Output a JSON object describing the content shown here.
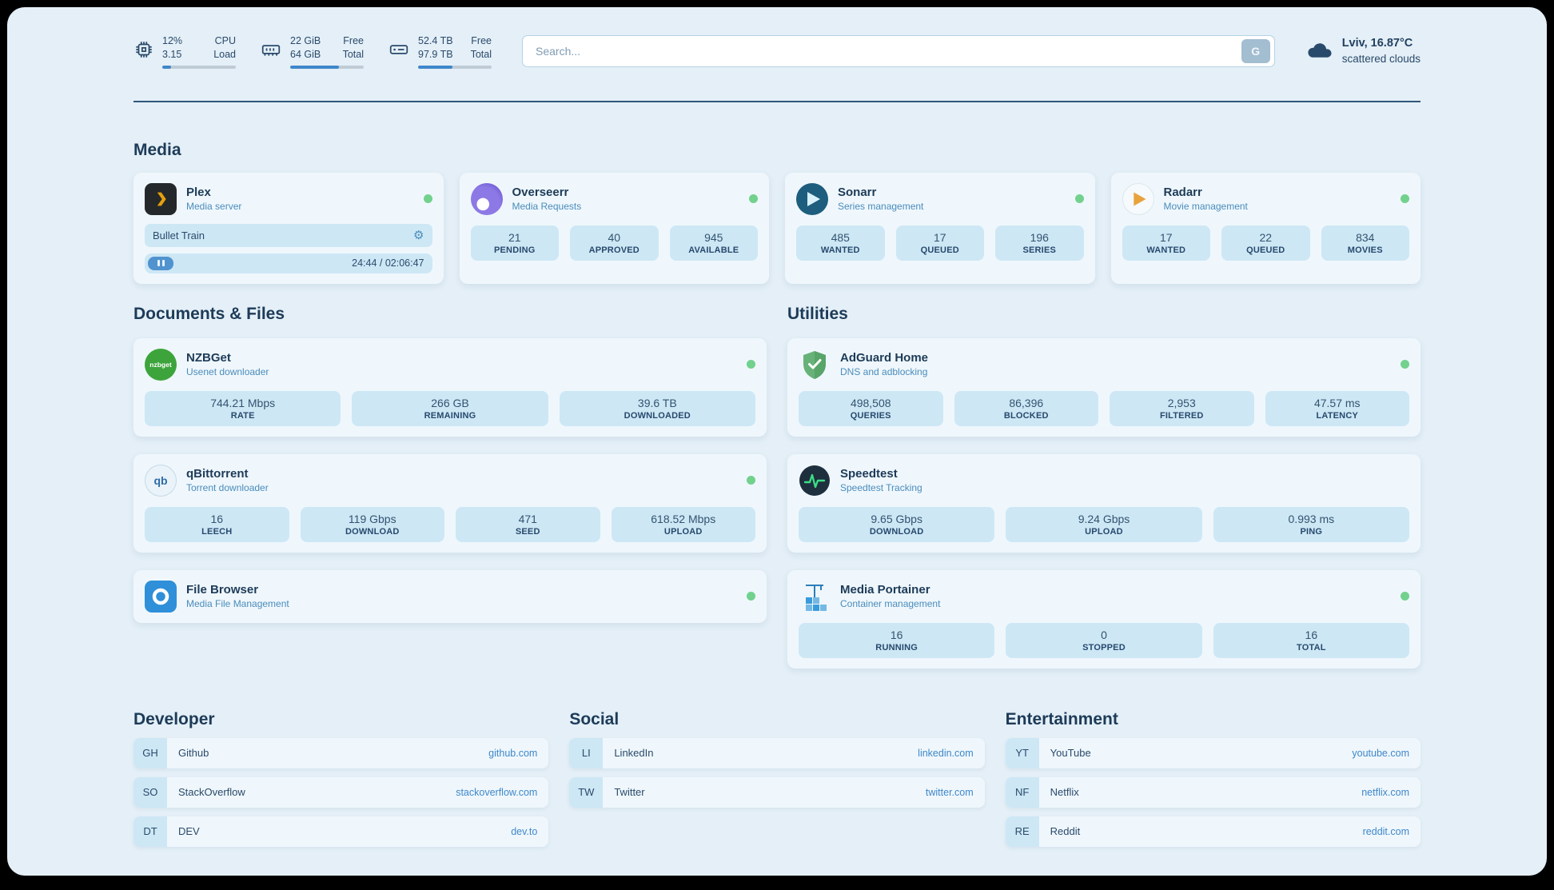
{
  "colors": {
    "accent": "#3f87ca",
    "status_online": "#72d18d",
    "stat_box": "#cde7f5"
  },
  "topbar": {
    "cpu": {
      "value": "12%",
      "load": "3.15",
      "label1": "CPU",
      "label2": "Load",
      "progress": 12
    },
    "ram": {
      "free": "22 GiB",
      "total": "64 GiB",
      "label1": "Free",
      "label2": "Total",
      "progress": 66
    },
    "disk": {
      "free": "52.4 TB",
      "total": "97.9 TB",
      "label1": "Free",
      "label2": "Total",
      "progress": 47
    },
    "search": {
      "placeholder": "Search...",
      "button": "G"
    },
    "weather": {
      "location": "Lviv, 16.87°C",
      "condition": "scattered clouds"
    }
  },
  "sections": {
    "media": "Media",
    "documents": "Documents & Files",
    "utilities": "Utilities",
    "developer": "Developer",
    "social": "Social",
    "entertainment": "Entertainment"
  },
  "apps": {
    "plex": {
      "title": "Plex",
      "subtitle": "Media server",
      "now_playing": "Bullet Train",
      "time": "24:44 / 02:06:47"
    },
    "overseerr": {
      "title": "Overseerr",
      "subtitle": "Media Requests",
      "stats": [
        {
          "value": "21",
          "label": "PENDING"
        },
        {
          "value": "40",
          "label": "APPROVED"
        },
        {
          "value": "945",
          "label": "AVAILABLE"
        }
      ]
    },
    "sonarr": {
      "title": "Sonarr",
      "subtitle": "Series management",
      "stats": [
        {
          "value": "485",
          "label": "WANTED"
        },
        {
          "value": "17",
          "label": "QUEUED"
        },
        {
          "value": "196",
          "label": "SERIES"
        }
      ]
    },
    "radarr": {
      "title": "Radarr",
      "subtitle": "Movie management",
      "stats": [
        {
          "value": "17",
          "label": "WANTED"
        },
        {
          "value": "22",
          "label": "QUEUED"
        },
        {
          "value": "834",
          "label": "MOVIES"
        }
      ]
    },
    "nzbget": {
      "title": "NZBGet",
      "subtitle": "Usenet downloader",
      "icon_text": "nzbget",
      "stats": [
        {
          "value": "744.21 Mbps",
          "label": "RATE"
        },
        {
          "value": "266 GB",
          "label": "REMAINING"
        },
        {
          "value": "39.6 TB",
          "label": "DOWNLOADED"
        }
      ]
    },
    "qbittorrent": {
      "title": "qBittorrent",
      "subtitle": "Torrent downloader",
      "icon_text": "qb",
      "stats": [
        {
          "value": "16",
          "label": "LEECH"
        },
        {
          "value": "119 Gbps",
          "label": "DOWNLOAD"
        },
        {
          "value": "471",
          "label": "SEED"
        },
        {
          "value": "618.52 Mbps",
          "label": "UPLOAD"
        }
      ]
    },
    "filebrowser": {
      "title": "File Browser",
      "subtitle": "Media File Management"
    },
    "adguard": {
      "title": "AdGuard Home",
      "subtitle": "DNS and adblocking",
      "stats": [
        {
          "value": "498,508",
          "label": "QUERIES"
        },
        {
          "value": "86,396",
          "label": "BLOCKED"
        },
        {
          "value": "2,953",
          "label": "FILTERED"
        },
        {
          "value": "47.57 ms",
          "label": "LATENCY"
        }
      ]
    },
    "speedtest": {
      "title": "Speedtest",
      "subtitle": "Speedtest Tracking",
      "stats": [
        {
          "value": "9.65 Gbps",
          "label": "DOWNLOAD"
        },
        {
          "value": "9.24 Gbps",
          "label": "UPLOAD"
        },
        {
          "value": "0.993 ms",
          "label": "PING"
        }
      ]
    },
    "portainer": {
      "title": "Media Portainer",
      "subtitle": "Container management",
      "stats": [
        {
          "value": "16",
          "label": "RUNNING"
        },
        {
          "value": "0",
          "label": "STOPPED"
        },
        {
          "value": "16",
          "label": "TOTAL"
        }
      ]
    }
  },
  "bookmarks": {
    "developer": [
      {
        "abbr": "GH",
        "name": "Github",
        "url": "github.com"
      },
      {
        "abbr": "SO",
        "name": "StackOverflow",
        "url": "stackoverflow.com"
      },
      {
        "abbr": "DT",
        "name": "DEV",
        "url": "dev.to"
      }
    ],
    "social": [
      {
        "abbr": "LI",
        "name": "LinkedIn",
        "url": "linkedin.com"
      },
      {
        "abbr": "TW",
        "name": "Twitter",
        "url": "twitter.com"
      }
    ],
    "entertainment": [
      {
        "abbr": "YT",
        "name": "YouTube",
        "url": "youtube.com"
      },
      {
        "abbr": "NF",
        "name": "Netflix",
        "url": "netflix.com"
      },
      {
        "abbr": "RE",
        "name": "Reddit",
        "url": "reddit.com"
      }
    ]
  }
}
